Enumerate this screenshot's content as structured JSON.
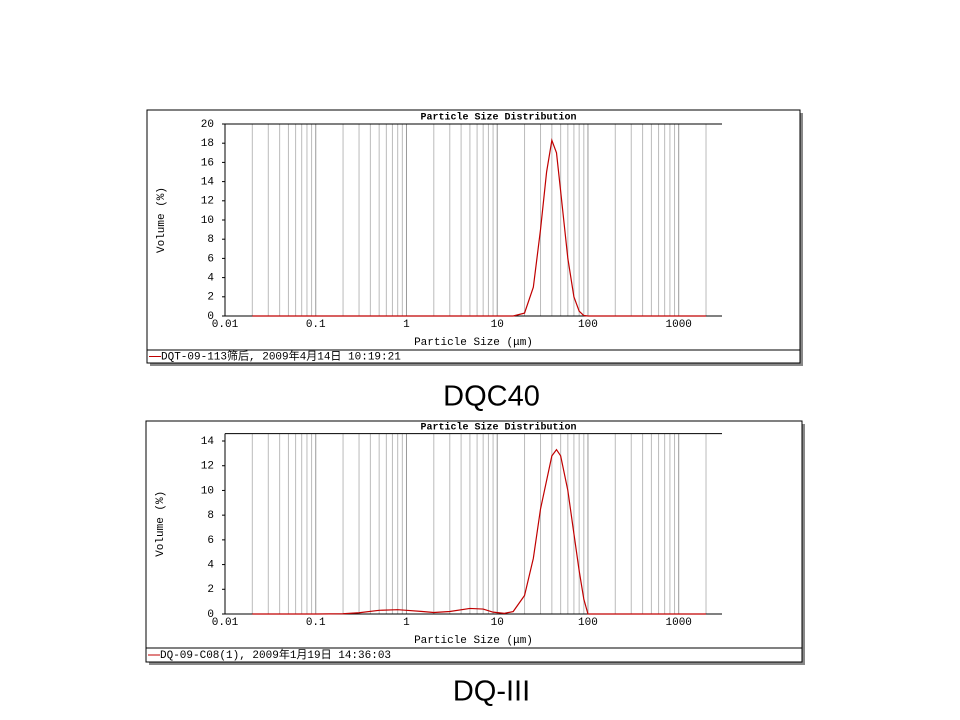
{
  "chart_data": [
    {
      "type": "line",
      "title": "Particle Size Distribution",
      "x_label": "Particle Size (μm)",
      "y_label": "Volume (%)",
      "caption": "DQC40",
      "x_scale": "log",
      "xlim": [
        0.01,
        3000
      ],
      "xticks": [
        0.01,
        0.1,
        1,
        10,
        100,
        1000
      ],
      "ylim": [
        0,
        20
      ],
      "yticks": [
        0,
        2,
        4,
        6,
        8,
        10,
        12,
        14,
        16,
        18,
        20
      ],
      "grid": "x",
      "x": [
        0.02,
        0.1,
        1,
        10,
        15,
        20,
        25,
        30,
        35,
        40,
        45,
        50,
        60,
        70,
        80,
        90,
        100,
        1000,
        2000
      ],
      "series": [
        {
          "name": "DQT-09-113筛后, 2009年4月14日 10:19:21",
          "color": "#c00000",
          "values": [
            0,
            0,
            0,
            0,
            0,
            0.3,
            3,
            9,
            15,
            18.3,
            17,
            13,
            6,
            2,
            0.5,
            0.05,
            0,
            0,
            0
          ]
        }
      ]
    },
    {
      "type": "line",
      "title": "Particle Size Distribution",
      "x_label": "Particle Size (μm)",
      "y_label": "Volume (%)",
      "caption": "DQ-III",
      "x_scale": "log",
      "xlim": [
        0.01,
        3000
      ],
      "xticks": [
        0.01,
        0.1,
        1,
        10,
        100,
        1000
      ],
      "ylim": [
        0,
        14.6
      ],
      "yticks": [
        0,
        2,
        4,
        6,
        8,
        10,
        12,
        14
      ],
      "grid": "x",
      "x": [
        0.02,
        0.1,
        0.2,
        0.3,
        0.5,
        0.8,
        1,
        1.5,
        2,
        3,
        5,
        7,
        9,
        12,
        15,
        20,
        25,
        30,
        40,
        45,
        50,
        60,
        70,
        80,
        90,
        100,
        200,
        2000
      ],
      "series": [
        {
          "name": "DQ-09-C08(1), 2009年1月19日 14:36:03",
          "color": "#c00000",
          "values": [
            0,
            0,
            0.02,
            0.1,
            0.3,
            0.35,
            0.3,
            0.2,
            0.12,
            0.2,
            0.45,
            0.4,
            0.15,
            0.05,
            0.2,
            1.5,
            4.5,
            8.5,
            12.8,
            13.3,
            12.8,
            10,
            6.5,
            3.5,
            1.2,
            0,
            0,
            0
          ]
        }
      ]
    }
  ]
}
